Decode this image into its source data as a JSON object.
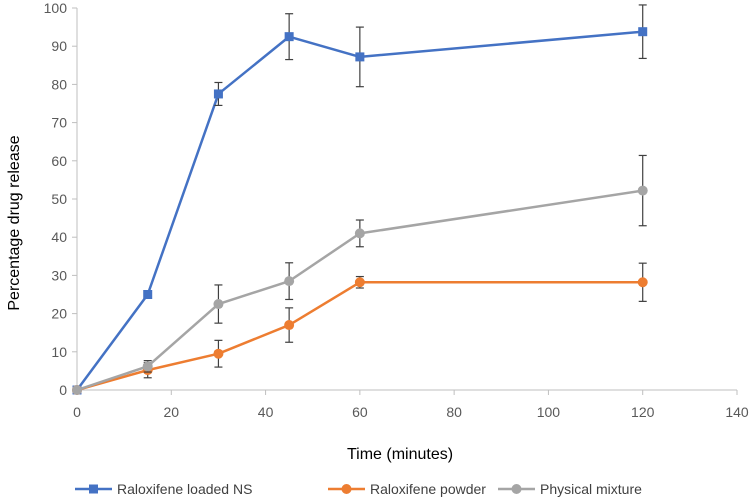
{
  "chart_data": {
    "type": "line",
    "title": "",
    "xlabel": "Time (minutes)",
    "ylabel": "Percentage drug release",
    "xlim": [
      0,
      140
    ],
    "ylim": [
      0,
      100
    ],
    "x_ticks": [
      0,
      20,
      40,
      60,
      80,
      100,
      120,
      140
    ],
    "y_ticks": [
      0,
      10,
      20,
      30,
      40,
      50,
      60,
      70,
      80,
      90,
      100
    ],
    "grid": false,
    "legend_position": "bottom",
    "series": [
      {
        "name": "Raloxifene loaded NS",
        "color": "#4472C4",
        "marker": "square",
        "x": [
          0,
          15,
          30,
          45,
          60,
          120
        ],
        "y": [
          0,
          25,
          77.5,
          92.5,
          87.2,
          93.8
        ],
        "err": [
          0,
          0.5,
          3,
          6,
          7.8,
          7
        ]
      },
      {
        "name": "Raloxifene powder",
        "color": "#ED7D31",
        "marker": "circle",
        "x": [
          0,
          15,
          30,
          45,
          60,
          120
        ],
        "y": [
          0,
          5.2,
          9.5,
          17,
          28.2,
          28.2
        ],
        "err": [
          0,
          2,
          3.5,
          4.5,
          1.5,
          5
        ]
      },
      {
        "name": "Physical mixture",
        "color": "#A5A5A5",
        "marker": "circle",
        "x": [
          0,
          15,
          30,
          45,
          60,
          120
        ],
        "y": [
          0,
          6.2,
          22.5,
          28.5,
          41,
          52.2
        ],
        "err": [
          0,
          1.5,
          5,
          4.8,
          3.5,
          9.2
        ]
      }
    ]
  }
}
